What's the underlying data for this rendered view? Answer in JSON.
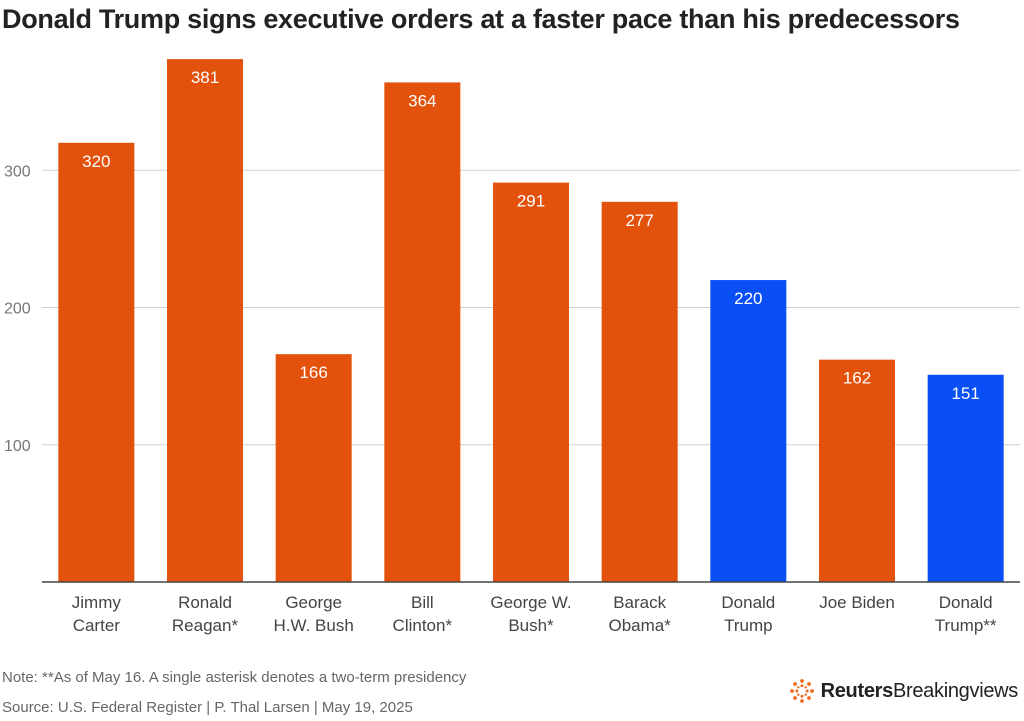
{
  "header": {
    "title": "Donald Trump signs executive orders at a faster pace than his predecessors"
  },
  "chart_data": {
    "type": "bar",
    "title": "Donald Trump signs executive orders at a faster pace than his predecessors",
    "xlabel": "",
    "ylabel": "",
    "categories": [
      [
        "Jimmy",
        "Carter"
      ],
      [
        "Ronald",
        "Reagan*"
      ],
      [
        "George",
        "H.W. Bush"
      ],
      [
        "Bill",
        "Clinton*"
      ],
      [
        "George W.",
        "Bush*"
      ],
      [
        "Barack",
        "Obama*"
      ],
      [
        "Donald",
        "Trump"
      ],
      [
        "Joe Biden"
      ],
      [
        "Donald",
        "Trump**"
      ]
    ],
    "values": [
      320,
      381,
      166,
      364,
      291,
      277,
      220,
      162,
      151
    ],
    "highlight": [
      false,
      false,
      false,
      false,
      false,
      false,
      true,
      false,
      true
    ],
    "ylim": [
      0,
      400
    ],
    "yticks": [
      100,
      200,
      300
    ],
    "grid": true,
    "legend": "none"
  },
  "colors": {
    "bar_default": "#e2520d",
    "bar_highlight": "#0a4ff5",
    "grid": "#cfcfcf",
    "axis": "#444444",
    "bar_label": "#ffffff"
  },
  "footer": {
    "note": "Note: **As of May 16. A single asterisk denotes a two-term presidency",
    "source": "Source: U.S. Federal Register | P. Thal Larsen | May 19, 2025",
    "brand": "Reuters",
    "brand_sub": "Breakingviews",
    "logo_icon": "reuters-dots-icon"
  }
}
